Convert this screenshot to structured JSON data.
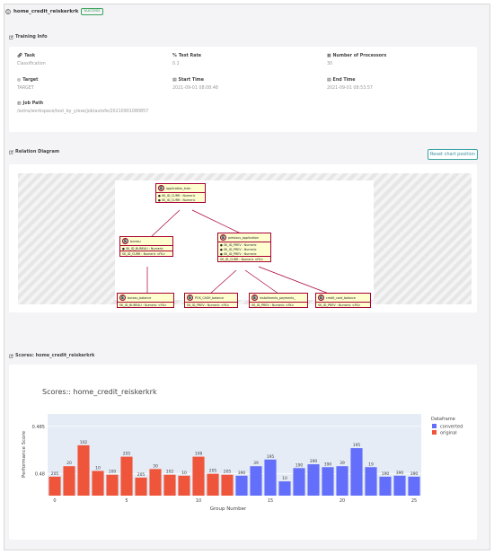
{
  "header": {
    "title": "home_credit_reiskerkrk",
    "status": "Success"
  },
  "training_info": {
    "section_title": "Training Info",
    "fields": [
      {
        "label": "Task",
        "value": "Classification",
        "icon": "link-icon"
      },
      {
        "label": "Test Rate",
        "value": "0.2",
        "icon": "percent-icon"
      },
      {
        "label": "Number of Processors",
        "value": "30",
        "icon": "processor-icon"
      },
      {
        "label": "Target",
        "value": "TARGET",
        "icon": "target-icon"
      },
      {
        "label": "Start Time",
        "value": "2021-09-01 08:08:48",
        "icon": "calendar-icon"
      },
      {
        "label": "End Time",
        "value": "2021-09-01 08:53:57",
        "icon": "calendar-icon"
      },
      {
        "label": "Job Path",
        "value": "/extra/workspace/test_by_y/exe/job/autofe/20210901080857",
        "icon": "map-icon"
      }
    ]
  },
  "relation": {
    "section_title": "Relation Diagram",
    "reset_label": "Reset chart position",
    "entities": [
      {
        "name": "application_train",
        "rows": [
          "SK_ID_CURR : Numeric",
          "SK_ID_CURR : Numeric"
        ],
        "fk": []
      },
      {
        "name": "bureau",
        "rows": [
          "SK_ID_BUREAU : Numeric"
        ],
        "fk": [
          "SK_ID_CURR : Numeric <FK>"
        ]
      },
      {
        "name": "previous_application",
        "rows": [
          "SK_ID_PREV : Numeric",
          "SK_ID_PREV : Numeric",
          "SK_ID_PREV : Numeric"
        ],
        "fk": [
          "SK_ID_CURR : Numeric <FK>"
        ]
      },
      {
        "name": "bureau_balance",
        "rows": [],
        "fk": [
          "SK_ID_BUREAU : Numeric <FK>"
        ]
      },
      {
        "name": "POS_CASH_balance",
        "rows": [],
        "fk": [
          "SK_ID_PREV : Numeric <FK>"
        ]
      },
      {
        "name": "installments_payments_",
        "rows": [],
        "fk": [
          "SK_ID_PREV : Numeric <FK>"
        ]
      },
      {
        "name": "credit_card_balance",
        "rows": [],
        "fk": [
          "SK_ID_PREV : Numeric <FK>"
        ]
      }
    ]
  },
  "scores": {
    "section_title": "Scores: home_credit_reiskerkrk"
  },
  "chart_data": {
    "type": "bar",
    "title": "Scores:: home_credit_reiskerkrk",
    "xlabel": "Group Number",
    "ylabel": "Performance Score",
    "y_ticks": [
      0.48,
      0.485
    ],
    "ylim": [
      0.4777,
      0.4863
    ],
    "x_ticks": [
      0,
      5,
      10,
      15,
      20,
      25
    ],
    "legend_title": "Dataframe",
    "legend_position": "right",
    "colors": {
      "converted": "#636efa",
      "original": "#ef553b"
    },
    "series": [
      {
        "name": "converted",
        "x": [
          13,
          14,
          15,
          16,
          17,
          18,
          19,
          20,
          21,
          22,
          23,
          24,
          25
        ],
        "values": [
          0.4798,
          0.4808,
          0.4815,
          0.4792,
          0.4806,
          0.481,
          0.4807,
          0.4808,
          0.4827,
          0.4807,
          0.4797,
          0.4798,
          0.4797
        ],
        "labels": [
          "390",
          "39",
          "195",
          "10",
          "190",
          "390",
          "390",
          "39",
          "195",
          "19",
          "190",
          "390",
          "390"
        ]
      },
      {
        "name": "original",
        "x": [
          0,
          1,
          2,
          3,
          4,
          5,
          6,
          7,
          8,
          9,
          10,
          11,
          12
        ],
        "values": [
          0.4797,
          0.4808,
          0.483,
          0.4803,
          0.4799,
          0.4818,
          0.4796,
          0.4805,
          0.4799,
          0.4798,
          0.4818,
          0.48,
          0.4799
        ],
        "labels": [
          "205",
          "20",
          "102",
          "10",
          "100",
          "205",
          "205",
          "30",
          "102",
          "10",
          "108",
          "205",
          "205"
        ]
      }
    ]
  }
}
